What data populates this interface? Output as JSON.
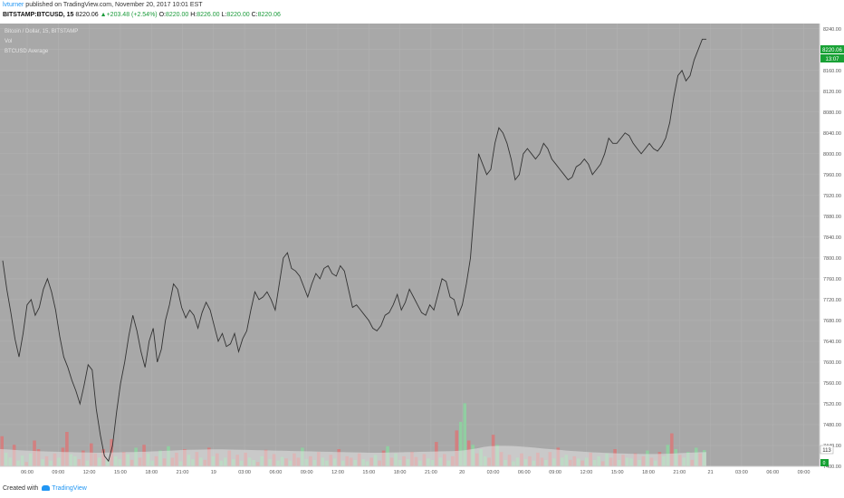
{
  "header": {
    "author": "lvturner",
    "published_text": "published on TradingView.com, November 20, 2017 10:01 EST",
    "symbol": "BITSTAMP:BTCUSD, 15",
    "last": "8220.06",
    "change": "+203.48 (+2.54%)",
    "o_label": "O:",
    "o_value": "8220.00",
    "h_label": "H:",
    "h_value": "8226.00",
    "l_label": "L:",
    "l_value": "8220.00",
    "c_label": "C:",
    "c_value": "8220.06"
  },
  "legend": {
    "title": "Bitcoin / Dollar, 15, BITSTAMP",
    "vol": "Vol",
    "average": "BTCUSD Average"
  },
  "price_labels": {
    "last": "8220.06",
    "countdown": "13:07",
    "volume": "113",
    "volume_last": "0"
  },
  "footer": {
    "created_with": "Created with",
    "brand": "TradingView"
  },
  "colors": {
    "background": "#a8a8a8",
    "axis_background": "#ffffff",
    "price_line": "#333333",
    "grid": "#b3b3b3",
    "volume_up": "#8ed1a0",
    "volume_down": "#d67b7b",
    "volume_average": "#e3e3e3",
    "last_price_label": "#18a135"
  },
  "chart_data": {
    "type": "line",
    "title": "Bitcoin / Dollar, 15, BITSTAMP",
    "ylim": [
      7400,
      8250
    ],
    "x_ticks": [
      "06:00",
      "09:00",
      "12:00",
      "15:00",
      "18:00",
      "21:00",
      "19",
      "03:00",
      "06:00",
      "09:00",
      "12:00",
      "15:00",
      "18:00",
      "21:00",
      "20",
      "03:00",
      "06:00",
      "09:00",
      "12:00",
      "15:00",
      "18:00",
      "21:00",
      "21",
      "03:00",
      "06:00",
      "09:00"
    ],
    "y_ticks": [
      "8240.00",
      "8200.00",
      "8160.00",
      "8120.00",
      "8080.00",
      "8040.00",
      "8000.00",
      "7960.00",
      "7920.00",
      "7880.00",
      "7840.00",
      "7800.00",
      "7760.00",
      "7720.00",
      "7680.00",
      "7640.00",
      "7600.00",
      "7560.00",
      "7520.00",
      "7480.00",
      "7440.00",
      "7400.00"
    ],
    "grid": true,
    "price": [
      7795,
      7740,
      7695,
      7645,
      7610,
      7655,
      7710,
      7720,
      7690,
      7705,
      7740,
      7760,
      7735,
      7700,
      7650,
      7610,
      7590,
      7565,
      7545,
      7520,
      7555,
      7595,
      7585,
      7510,
      7460,
      7420,
      7410,
      7440,
      7505,
      7560,
      7600,
      7650,
      7690,
      7660,
      7620,
      7590,
      7640,
      7665,
      7600,
      7625,
      7680,
      7710,
      7750,
      7740,
      7705,
      7685,
      7700,
      7690,
      7665,
      7695,
      7715,
      7700,
      7670,
      7640,
      7655,
      7630,
      7635,
      7655,
      7620,
      7645,
      7660,
      7700,
      7735,
      7720,
      7725,
      7735,
      7720,
      7700,
      7750,
      7800,
      7810,
      7780,
      7775,
      7765,
      7745,
      7725,
      7750,
      7770,
      7760,
      7780,
      7785,
      7770,
      7765,
      7785,
      7775,
      7740,
      7705,
      7710,
      7700,
      7690,
      7680,
      7665,
      7660,
      7670,
      7690,
      7695,
      7710,
      7730,
      7700,
      7715,
      7740,
      7725,
      7710,
      7695,
      7690,
      7710,
      7700,
      7730,
      7760,
      7755,
      7725,
      7720,
      7690,
      7710,
      7750,
      7800,
      7900,
      8000,
      7980,
      7960,
      7970,
      8020,
      8050,
      8040,
      8020,
      7990,
      7950,
      7960,
      8000,
      8010,
      8000,
      7990,
      8000,
      8020,
      8010,
      7990,
      7980,
      7970,
      7960,
      7950,
      7955,
      7975,
      7980,
      7990,
      7980,
      7960,
      7970,
      7980,
      8000,
      8030,
      8020,
      8020,
      8030,
      8040,
      8035,
      8020,
      8010,
      8000,
      8010,
      8020,
      8010,
      8005,
      8015,
      8030,
      8060,
      8110,
      8150,
      8160,
      8140,
      8150,
      8180,
      8200,
      8220,
      8220
    ],
    "volume_ylim": [
      0,
      600
    ],
    "volume": [
      210,
      95,
      60,
      150,
      40,
      75,
      30,
      90,
      180,
      120,
      50,
      70,
      40,
      90,
      60,
      130,
      240,
      85,
      70,
      50,
      110,
      40,
      160,
      90,
      60,
      120,
      45,
      190,
      70,
      50,
      100,
      85,
      45,
      130,
      60,
      150,
      90,
      40,
      70,
      110,
      55,
      140,
      60,
      95,
      35,
      120,
      80,
      50,
      100,
      60,
      45,
      130,
      70,
      90,
      40,
      60,
      110,
      50,
      80,
      40,
      95,
      60,
      45,
      30,
      70,
      115,
      50,
      85,
      40,
      65,
      55,
      40,
      90,
      60,
      130,
      50,
      70,
      45,
      100,
      60,
      40,
      80,
      55,
      120,
      40,
      70,
      60,
      45,
      90,
      50,
      35,
      60,
      80,
      40,
      110,
      140,
      60,
      90,
      45,
      70,
      50,
      100,
      65,
      40,
      85,
      55,
      45,
      170,
      60,
      85,
      40,
      70,
      250,
      310,
      440,
      180,
      150,
      90,
      120,
      70,
      60,
      220,
      150,
      100,
      45,
      80,
      35,
      60,
      90,
      50,
      70,
      40,
      95,
      60,
      45,
      100,
      55,
      130,
      60,
      80,
      45,
      70,
      55,
      40,
      60,
      95,
      45,
      70,
      35,
      90,
      60,
      120,
      45,
      80,
      60,
      55,
      90,
      45,
      70,
      110,
      60,
      40,
      100,
      70,
      150,
      230,
      120,
      80,
      60,
      100,
      45,
      130,
      90,
      113
    ],
    "volume_up": [
      0,
      1,
      1,
      0,
      1,
      1,
      0,
      1,
      0,
      0,
      1,
      0,
      1,
      0,
      1,
      0,
      0,
      1,
      1,
      0,
      0,
      1,
      0,
      0,
      1,
      0,
      1,
      0,
      1,
      1,
      0,
      1,
      0,
      1,
      0,
      0,
      1,
      1,
      0,
      1,
      0,
      1,
      0,
      0,
      1,
      0,
      1,
      1,
      0,
      1,
      0,
      0,
      1,
      0,
      1,
      1,
      0,
      1,
      0,
      1,
      0,
      1,
      1,
      0,
      1,
      0,
      1,
      0,
      1,
      1,
      0,
      1,
      0,
      0,
      1,
      1,
      0,
      1,
      0,
      1,
      1,
      0,
      1,
      0,
      1,
      0,
      0,
      1,
      0,
      1,
      1,
      0,
      1,
      0,
      0,
      1,
      0,
      1,
      1,
      0,
      1,
      0,
      0,
      1,
      0,
      1,
      1,
      0,
      1,
      0,
      1,
      0,
      0,
      1,
      1,
      0,
      1,
      0,
      1,
      1,
      0,
      0,
      1,
      0,
      1,
      0,
      1,
      1,
      0,
      1,
      0,
      1,
      0,
      0,
      1,
      0,
      1,
      0,
      1,
      1,
      0,
      0,
      1,
      0,
      1,
      0,
      1,
      1,
      0,
      1,
      0,
      0,
      1,
      0,
      1,
      1,
      0,
      1,
      0,
      1,
      0,
      1,
      0,
      1,
      1,
      0,
      1,
      0,
      1,
      1,
      0,
      1,
      0,
      1
    ],
    "volume_average": [
      120,
      118,
      115,
      112,
      110,
      108,
      106,
      104,
      103,
      102,
      100,
      99,
      98,
      97,
      96,
      95,
      95,
      96,
      97,
      98,
      99,
      100,
      101,
      102,
      104,
      106,
      108,
      110,
      112,
      114,
      115,
      116,
      117,
      118,
      118,
      118,
      117,
      116,
      115,
      114,
      113,
      112,
      111,
      110,
      109,
      108,
      107,
      106,
      105,
      104,
      103,
      102,
      101,
      100,
      99,
      98,
      97,
      96,
      95,
      95,
      95,
      96,
      97,
      98,
      99,
      100,
      101,
      102,
      103,
      104,
      105,
      106,
      108,
      112,
      118,
      126,
      135,
      140,
      142,
      143,
      142,
      140,
      137,
      134,
      130,
      126,
      122,
      118,
      114,
      110,
      107,
      104,
      101,
      98,
      96,
      94,
      92,
      90,
      89,
      88,
      87,
      86,
      86,
      86,
      87,
      88,
      90,
      92,
      94,
      96,
      98,
      100
    ]
  }
}
